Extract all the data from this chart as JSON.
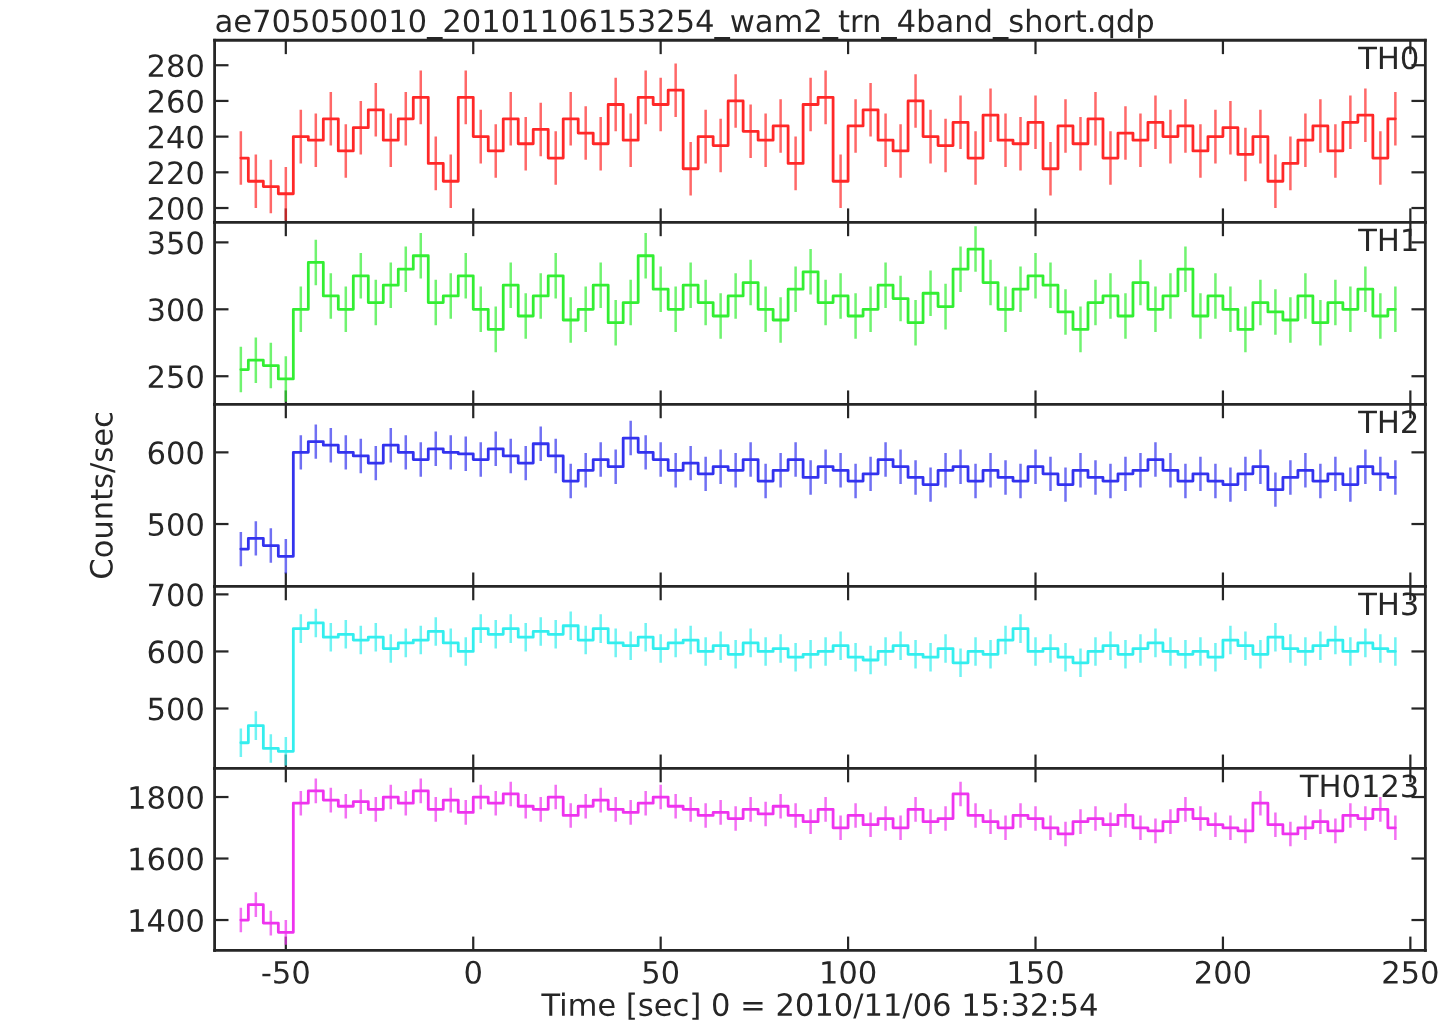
{
  "chart_data": [
    {
      "type": "step",
      "title": "ae705050010_20101106153254_wam2_trn_4band_short.qdp",
      "annotations": [
        "TH0"
      ],
      "tick_labels": "y",
      "xlim": [
        -69,
        254
      ],
      "xticks": [
        -50,
        0,
        50,
        100,
        150,
        200,
        250
      ],
      "ylim": [
        192,
        294
      ],
      "yticks": [
        200,
        220,
        240,
        260,
        280
      ],
      "x": [
        -62,
        -58,
        -54,
        -50,
        -46,
        -42,
        -38,
        -34,
        -30,
        -26,
        -22,
        -18,
        -14,
        -10,
        -6,
        -2,
        2,
        6,
        10,
        14,
        18,
        22,
        26,
        30,
        34,
        38,
        42,
        46,
        50,
        54,
        58,
        62,
        66,
        70,
        74,
        78,
        82,
        86,
        90,
        94,
        98,
        102,
        106,
        110,
        114,
        118,
        122,
        126,
        130,
        134,
        138,
        142,
        146,
        150,
        154,
        158,
        162,
        166,
        170,
        174,
        178,
        182,
        186,
        190,
        194,
        198,
        202,
        206,
        210,
        214,
        218,
        222,
        226,
        230,
        234,
        238,
        242,
        246
      ],
      "series": [
        {
          "color": "#ff2828",
          "values": [
            228,
            215,
            212,
            208,
            240,
            238,
            250,
            232,
            245,
            255,
            238,
            250,
            262,
            225,
            215,
            262,
            240,
            232,
            250,
            236,
            244,
            228,
            250,
            242,
            236,
            258,
            238,
            262,
            258,
            266,
            222,
            240,
            235,
            260,
            243,
            238,
            246,
            225,
            258,
            262,
            215,
            246,
            255,
            238,
            232,
            260,
            240,
            235,
            248,
            228,
            252,
            238,
            236,
            248,
            222,
            246,
            236,
            250,
            228,
            242,
            238,
            248,
            240,
            246,
            232,
            240,
            245,
            230,
            240,
            215,
            225,
            238,
            246,
            232,
            248,
            252,
            228,
            250
          ],
          "errors": [
            15,
            15,
            15,
            15,
            15,
            15,
            15,
            15,
            15,
            15,
            15,
            15,
            15,
            15,
            15,
            15,
            15,
            15,
            15,
            15,
            15,
            15,
            15,
            15,
            15,
            15,
            15,
            15,
            15,
            15,
            15,
            15,
            15,
            15,
            15,
            15,
            15,
            15,
            15,
            15,
            15,
            15,
            15,
            15,
            15,
            15,
            15,
            15,
            15,
            15,
            15,
            15,
            15,
            15,
            15,
            15,
            15,
            15,
            15,
            15,
            15,
            15,
            15,
            15,
            15,
            15,
            15,
            15,
            15,
            15,
            15,
            15,
            15,
            15,
            15,
            15,
            15,
            15
          ]
        }
      ]
    },
    {
      "type": "step",
      "annotations": [
        "TH1"
      ],
      "tick_labels": "y",
      "xlim": [
        -69,
        254
      ],
      "xticks": [
        -50,
        0,
        50,
        100,
        150,
        200,
        250
      ],
      "ylim": [
        229,
        365
      ],
      "yticks": [
        250,
        300,
        350
      ],
      "x": [
        -62,
        -58,
        -54,
        -50,
        -46,
        -42,
        -38,
        -34,
        -30,
        -26,
        -22,
        -18,
        -14,
        -10,
        -6,
        -2,
        2,
        6,
        10,
        14,
        18,
        22,
        26,
        30,
        34,
        38,
        42,
        46,
        50,
        54,
        58,
        62,
        66,
        70,
        74,
        78,
        82,
        86,
        90,
        94,
        98,
        102,
        106,
        110,
        114,
        118,
        122,
        126,
        130,
        134,
        138,
        142,
        146,
        150,
        154,
        158,
        162,
        166,
        170,
        174,
        178,
        182,
        186,
        190,
        194,
        198,
        202,
        206,
        210,
        214,
        218,
        222,
        226,
        230,
        234,
        238,
        242,
        246
      ],
      "series": [
        {
          "color": "#33ee33",
          "values": [
            255,
            262,
            258,
            248,
            300,
            335,
            310,
            300,
            325,
            305,
            318,
            330,
            340,
            305,
            310,
            325,
            300,
            285,
            318,
            295,
            310,
            325,
            292,
            300,
            318,
            290,
            305,
            340,
            315,
            300,
            318,
            305,
            295,
            310,
            320,
            300,
            292,
            315,
            328,
            305,
            310,
            295,
            300,
            318,
            308,
            290,
            312,
            302,
            330,
            345,
            320,
            300,
            315,
            325,
            318,
            298,
            285,
            305,
            310,
            295,
            320,
            300,
            310,
            330,
            295,
            310,
            300,
            285,
            305,
            298,
            292,
            310,
            290,
            305,
            300,
            315,
            295,
            300
          ],
          "errors": [
            17,
            17,
            17,
            17,
            17,
            17,
            17,
            17,
            17,
            17,
            17,
            17,
            17,
            17,
            17,
            17,
            17,
            17,
            17,
            17,
            17,
            17,
            17,
            17,
            17,
            17,
            17,
            17,
            17,
            17,
            17,
            17,
            17,
            17,
            17,
            17,
            17,
            17,
            17,
            17,
            17,
            17,
            17,
            17,
            17,
            17,
            17,
            17,
            17,
            17,
            17,
            17,
            17,
            17,
            17,
            17,
            17,
            17,
            17,
            17,
            17,
            17,
            17,
            17,
            17,
            17,
            17,
            17,
            17,
            17,
            17,
            17,
            17,
            17,
            17,
            17,
            17,
            17
          ]
        }
      ]
    },
    {
      "type": "step",
      "annotations": [
        "TH2"
      ],
      "ylabel": "Counts/sec",
      "tick_labels": "y",
      "xlim": [
        -69,
        254
      ],
      "xticks": [
        -50,
        0,
        50,
        100,
        150,
        200,
        250
      ],
      "ylim": [
        413,
        667
      ],
      "yticks": [
        500,
        600
      ],
      "x": [
        -62,
        -58,
        -54,
        -50,
        -46,
        -42,
        -38,
        -34,
        -30,
        -26,
        -22,
        -18,
        -14,
        -10,
        -6,
        -2,
        2,
        6,
        10,
        14,
        18,
        22,
        26,
        30,
        34,
        38,
        42,
        46,
        50,
        54,
        58,
        62,
        66,
        70,
        74,
        78,
        82,
        86,
        90,
        94,
        98,
        102,
        106,
        110,
        114,
        118,
        122,
        126,
        130,
        134,
        138,
        142,
        146,
        150,
        154,
        158,
        162,
        166,
        170,
        174,
        178,
        182,
        186,
        190,
        194,
        198,
        202,
        206,
        210,
        214,
        218,
        222,
        226,
        230,
        234,
        238,
        242,
        246
      ],
      "series": [
        {
          "color": "#3333ee",
          "values": [
            465,
            480,
            470,
            455,
            600,
            615,
            610,
            600,
            595,
            585,
            610,
            600,
            590,
            605,
            600,
            598,
            590,
            605,
            595,
            585,
            612,
            595,
            560,
            575,
            590,
            580,
            620,
            600,
            590,
            575,
            585,
            570,
            580,
            575,
            590,
            560,
            575,
            590,
            565,
            580,
            575,
            560,
            570,
            590,
            580,
            565,
            555,
            575,
            580,
            560,
            575,
            565,
            560,
            580,
            570,
            555,
            575,
            565,
            560,
            570,
            575,
            590,
            575,
            560,
            570,
            560,
            555,
            570,
            580,
            548,
            565,
            575,
            560,
            570,
            555,
            580,
            570,
            565
          ],
          "errors": [
            24,
            24,
            24,
            24,
            24,
            24,
            24,
            24,
            24,
            24,
            24,
            24,
            24,
            24,
            24,
            24,
            24,
            24,
            24,
            24,
            24,
            24,
            24,
            24,
            24,
            24,
            24,
            24,
            24,
            24,
            24,
            24,
            24,
            24,
            24,
            24,
            24,
            24,
            24,
            24,
            24,
            24,
            24,
            24,
            24,
            24,
            24,
            24,
            24,
            24,
            24,
            24,
            24,
            24,
            24,
            24,
            24,
            24,
            24,
            24,
            24,
            24,
            24,
            24,
            24,
            24,
            24,
            24,
            24,
            24,
            24,
            24,
            24,
            24,
            24,
            24,
            24,
            24
          ]
        }
      ]
    },
    {
      "type": "step",
      "annotations": [
        "TH3"
      ],
      "tick_labels": "y",
      "xlim": [
        -69,
        254
      ],
      "xticks": [
        -50,
        0,
        50,
        100,
        150,
        200,
        250
      ],
      "ylim": [
        395,
        714
      ],
      "yticks": [
        500,
        600,
        700
      ],
      "x": [
        -62,
        -58,
        -54,
        -50,
        -46,
        -42,
        -38,
        -34,
        -30,
        -26,
        -22,
        -18,
        -14,
        -10,
        -6,
        -2,
        2,
        6,
        10,
        14,
        18,
        22,
        26,
        30,
        34,
        38,
        42,
        46,
        50,
        54,
        58,
        62,
        66,
        70,
        74,
        78,
        82,
        86,
        90,
        94,
        98,
        102,
        106,
        110,
        114,
        118,
        122,
        126,
        130,
        134,
        138,
        142,
        146,
        150,
        154,
        158,
        162,
        166,
        170,
        174,
        178,
        182,
        186,
        190,
        194,
        198,
        202,
        206,
        210,
        214,
        218,
        222,
        226,
        230,
        234,
        238,
        242,
        246
      ],
      "series": [
        {
          "color": "#33eeee",
          "values": [
            440,
            470,
            430,
            425,
            640,
            650,
            625,
            630,
            620,
            625,
            605,
            615,
            620,
            635,
            615,
            600,
            640,
            630,
            640,
            625,
            635,
            630,
            645,
            620,
            640,
            615,
            610,
            625,
            605,
            615,
            620,
            600,
            610,
            595,
            615,
            600,
            605,
            590,
            595,
            600,
            610,
            590,
            585,
            600,
            610,
            595,
            590,
            605,
            580,
            600,
            595,
            620,
            640,
            600,
            605,
            590,
            580,
            600,
            610,
            595,
            605,
            615,
            600,
            595,
            600,
            590,
            620,
            610,
            595,
            625,
            605,
            600,
            610,
            620,
            600,
            615,
            605,
            600
          ],
          "errors": [
            25,
            25,
            25,
            25,
            25,
            25,
            25,
            25,
            25,
            25,
            25,
            25,
            25,
            25,
            25,
            25,
            25,
            25,
            25,
            25,
            25,
            25,
            25,
            25,
            25,
            25,
            25,
            25,
            25,
            25,
            25,
            25,
            25,
            25,
            25,
            25,
            25,
            25,
            25,
            25,
            25,
            25,
            25,
            25,
            25,
            25,
            25,
            25,
            25,
            25,
            25,
            25,
            25,
            25,
            25,
            25,
            25,
            25,
            25,
            25,
            25,
            25,
            25,
            25,
            25,
            25,
            25,
            25,
            25,
            25,
            25,
            25,
            25,
            25,
            25,
            25,
            25,
            25
          ]
        }
      ]
    },
    {
      "type": "step",
      "annotations": [
        "TH0123"
      ],
      "xlabel": "Time [sec] 0 = 2010/11/06 15:32:54",
      "xlim": [
        -69,
        254
      ],
      "xticks": [
        -50,
        0,
        50,
        100,
        150,
        200,
        250
      ],
      "ylim": [
        1301,
        1893
      ],
      "yticks": [
        1400,
        1600,
        1800
      ],
      "x": [
        -62,
        -58,
        -54,
        -50,
        -46,
        -42,
        -38,
        -34,
        -30,
        -26,
        -22,
        -18,
        -14,
        -10,
        -6,
        -2,
        2,
        6,
        10,
        14,
        18,
        22,
        26,
        30,
        34,
        38,
        42,
        46,
        50,
        54,
        58,
        62,
        66,
        70,
        74,
        78,
        82,
        86,
        90,
        94,
        98,
        102,
        106,
        110,
        114,
        118,
        122,
        126,
        130,
        134,
        138,
        142,
        146,
        150,
        154,
        158,
        162,
        166,
        170,
        174,
        178,
        182,
        186,
        190,
        194,
        198,
        202,
        206,
        210,
        214,
        218,
        222,
        226,
        230,
        234,
        238,
        242,
        246
      ],
      "series": [
        {
          "color": "#ee33ee",
          "values": [
            1400,
            1450,
            1390,
            1360,
            1780,
            1820,
            1790,
            1770,
            1785,
            1760,
            1800,
            1780,
            1820,
            1760,
            1790,
            1750,
            1800,
            1780,
            1810,
            1770,
            1760,
            1800,
            1740,
            1770,
            1790,
            1760,
            1750,
            1780,
            1800,
            1770,
            1760,
            1740,
            1750,
            1730,
            1760,
            1745,
            1770,
            1740,
            1720,
            1760,
            1700,
            1740,
            1710,
            1730,
            1700,
            1760,
            1720,
            1730,
            1810,
            1740,
            1720,
            1700,
            1740,
            1730,
            1700,
            1680,
            1720,
            1730,
            1710,
            1740,
            1700,
            1690,
            1720,
            1760,
            1730,
            1710,
            1700,
            1690,
            1780,
            1710,
            1680,
            1700,
            1720,
            1690,
            1740,
            1730,
            1760,
            1700
          ],
          "errors": [
            40,
            40,
            40,
            40,
            40,
            40,
            40,
            40,
            40,
            40,
            40,
            40,
            40,
            40,
            40,
            40,
            40,
            40,
            40,
            40,
            40,
            40,
            40,
            40,
            40,
            40,
            40,
            40,
            40,
            40,
            40,
            40,
            40,
            40,
            40,
            40,
            40,
            40,
            40,
            40,
            40,
            40,
            40,
            40,
            40,
            40,
            40,
            40,
            40,
            40,
            40,
            40,
            40,
            40,
            40,
            40,
            40,
            40,
            40,
            40,
            40,
            40,
            40,
            40,
            40,
            40,
            40,
            40,
            40,
            40,
            40,
            40,
            40,
            40,
            40,
            40,
            40,
            40
          ]
        }
      ]
    }
  ]
}
